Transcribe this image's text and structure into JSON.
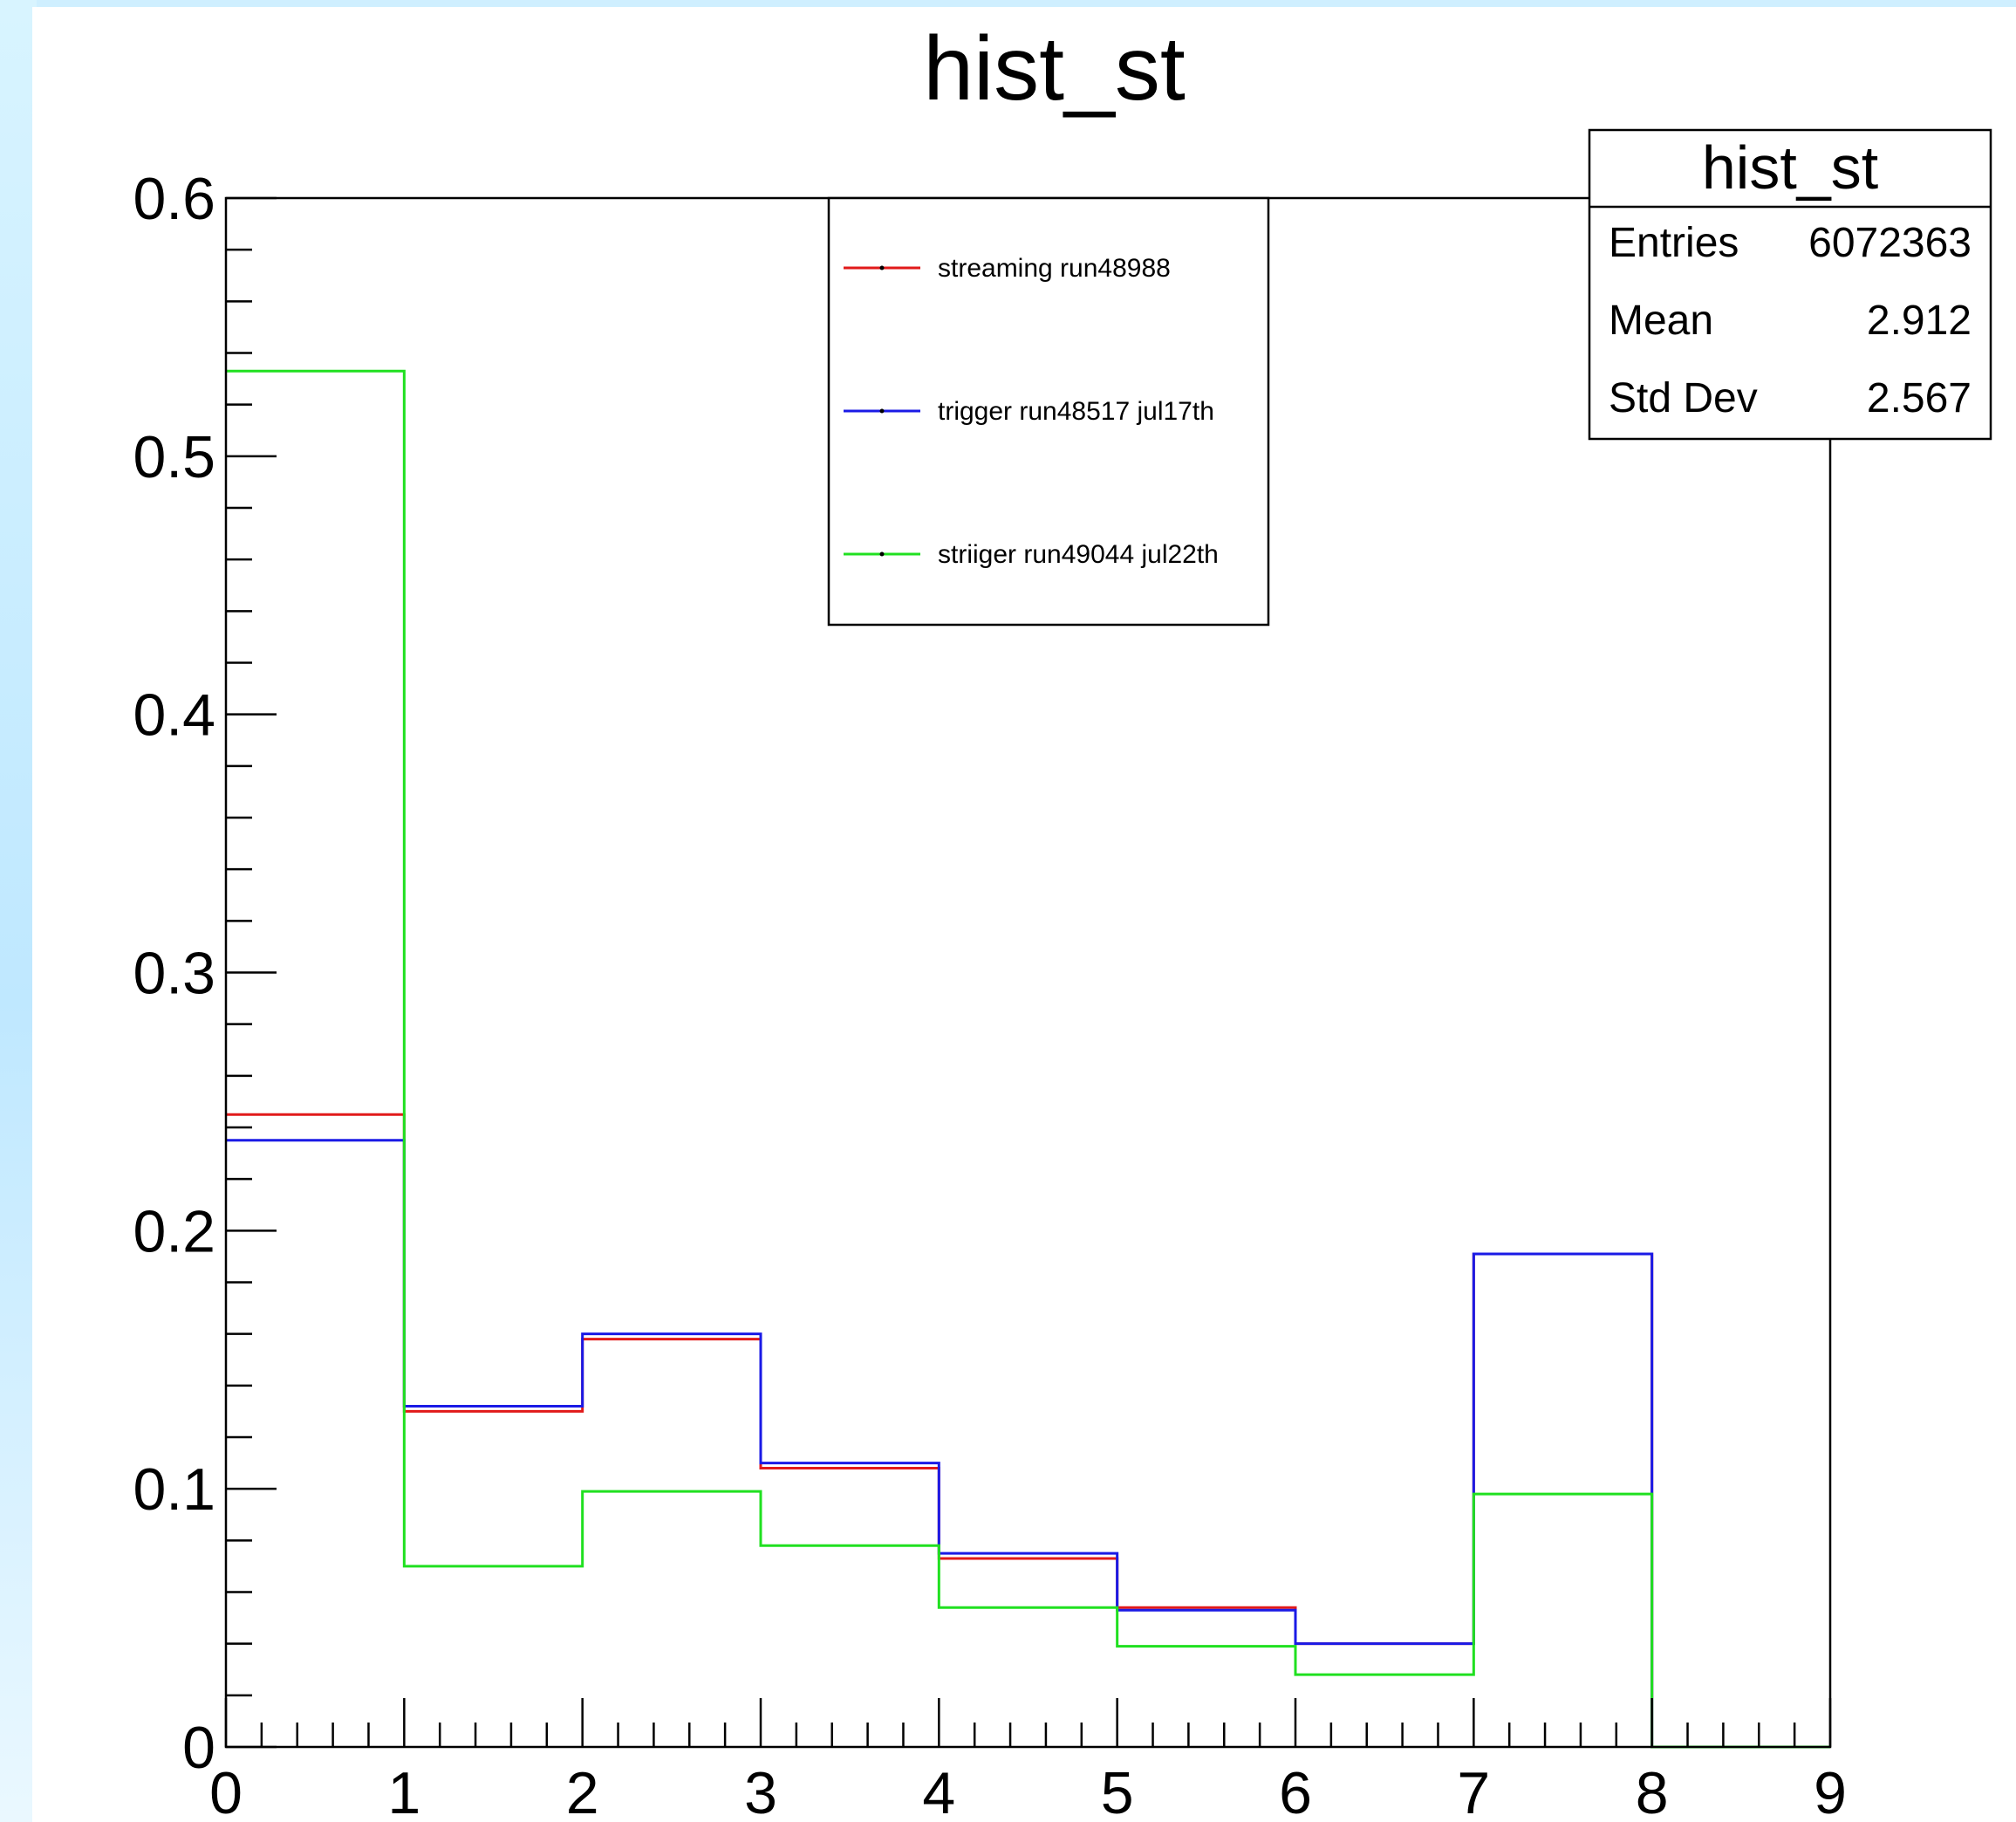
{
  "chart_data": {
    "type": "histogram",
    "title": "hist_st",
    "xlabel": "",
    "ylabel": "",
    "xlim": [
      0,
      9
    ],
    "ylim": [
      0,
      0.6
    ],
    "x_ticks": [
      "0",
      "1",
      "2",
      "3",
      "4",
      "5",
      "6",
      "7",
      "8",
      "9"
    ],
    "y_ticks": [
      "0",
      "0.1",
      "0.2",
      "0.3",
      "0.4",
      "0.5",
      "0.6"
    ],
    "bin_edges": [
      0,
      1,
      2,
      3,
      4,
      5,
      6,
      7,
      8,
      9
    ],
    "series": [
      {
        "name": "streaming run48988",
        "color": "#e11a1a",
        "values": [
          0.245,
          0.13,
          0.158,
          0.108,
          0.073,
          0.054,
          0.04,
          0.191,
          0.0
        ]
      },
      {
        "name": "trigger run48517 jul17th",
        "color": "#1a1ae6",
        "values": [
          0.235,
          0.132,
          0.16,
          0.11,
          0.075,
          0.053,
          0.04,
          0.191,
          0.0
        ]
      },
      {
        "name": "striiger run49044 jul22th",
        "color": "#20e020",
        "values": [
          0.533,
          0.07,
          0.099,
          0.078,
          0.054,
          0.039,
          0.028,
          0.098,
          0.0
        ]
      }
    ],
    "stats_box": {
      "title": "hist_st",
      "rows": [
        {
          "label": "Entries",
          "value": "6072363"
        },
        {
          "label": "Mean",
          "value": "2.912"
        },
        {
          "label": "Std Dev",
          "value": "2.567"
        }
      ]
    },
    "grid": false,
    "legend_position": "top-center"
  }
}
